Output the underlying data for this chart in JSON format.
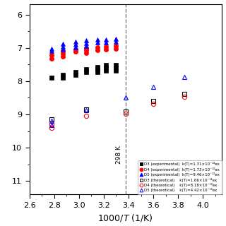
{
  "xlim": [
    2.6,
    4.15
  ],
  "ylim": [
    -11.4,
    -5.7
  ],
  "dashed_x": 3.38,
  "dashed_label": "298 K",
  "exp_D3": {
    "x": [
      2.78,
      2.87,
      2.87,
      2.97,
      2.97,
      3.06,
      3.06,
      3.15,
      3.15,
      3.15,
      3.22,
      3.22,
      3.22,
      3.3,
      3.3,
      3.3
    ],
    "y": [
      -7.9,
      -7.82,
      -7.9,
      -7.73,
      -7.82,
      -7.65,
      -7.72,
      -7.58,
      -7.65,
      -7.72,
      -7.52,
      -7.6,
      -7.68,
      -7.52,
      -7.6,
      -7.68
    ],
    "color": "black",
    "marker": "s",
    "ms": 4.5
  },
  "exp_D4": {
    "x": [
      2.78,
      2.78,
      2.87,
      2.87,
      2.87,
      2.97,
      2.97,
      3.06,
      3.06,
      3.06,
      3.15,
      3.15,
      3.22,
      3.22,
      3.3,
      3.3
    ],
    "y": [
      -7.22,
      -7.32,
      -7.1,
      -7.18,
      -7.26,
      -7.05,
      -7.12,
      -7.0,
      -7.08,
      -7.16,
      -6.98,
      -7.06,
      -6.96,
      -7.04,
      -6.95,
      -7.03
    ],
    "color": "red",
    "marker": "o",
    "ms": 4.5
  },
  "exp_D5": {
    "x": [
      2.78,
      2.78,
      2.87,
      2.87,
      2.87,
      2.97,
      2.97,
      2.97,
      3.06,
      3.06,
      3.06,
      3.15,
      3.15,
      3.22,
      3.22,
      3.3,
      3.3
    ],
    "y": [
      -7.02,
      -7.1,
      -6.88,
      -6.96,
      -7.04,
      -6.82,
      -6.9,
      -6.98,
      -6.78,
      -6.86,
      -6.94,
      -6.76,
      -6.84,
      -6.75,
      -6.83,
      -6.74,
      -6.82
    ],
    "color": "blue",
    "marker": "^",
    "ms": 5.0
  },
  "theo_D3": {
    "x": [
      2.78,
      3.06,
      3.38,
      3.6,
      3.85
    ],
    "y": [
      -9.15,
      -8.85,
      -8.92,
      -8.6,
      -8.38
    ],
    "color": "black",
    "marker": "s",
    "ms": 4.5
  },
  "theo_D4": {
    "x": [
      2.78,
      2.78,
      3.06,
      3.38,
      3.6,
      3.85
    ],
    "y": [
      -9.3,
      -9.4,
      -9.05,
      -8.98,
      -8.68,
      -8.48
    ],
    "color": "red",
    "marker": "o",
    "ms": 4.5
  },
  "theo_D5": {
    "x": [
      2.78,
      2.78,
      3.06,
      3.38,
      3.6,
      3.85
    ],
    "y": [
      -9.2,
      -9.32,
      -8.88,
      -8.5,
      -8.18,
      -7.88
    ],
    "color": "blue",
    "marker": "^",
    "ms": 5.0
  },
  "ytick_vals": [
    -6,
    -7,
    -8,
    -9,
    -10,
    -11
  ],
  "xtick_vals": [
    2.6,
    2.8,
    3.0,
    3.2,
    3.4,
    3.6,
    3.8,
    4.0
  ],
  "legend": [
    {
      "marker": "s",
      "fc": "black",
      "ec": "black",
      "label": "D3 (experimental)  k(T)=1.31×10⁻¹⁴ex"
    },
    {
      "marker": "o",
      "fc": "red",
      "ec": "red",
      "label": "D4 (experimental)  k(T)=1.73×10⁻¹²ex"
    },
    {
      "marker": "^",
      "fc": "blue",
      "ec": "blue",
      "label": "D5 (experimental)  k(T)=9.46×10⁻¹²ex"
    },
    {
      "marker": "s",
      "fc": "none",
      "ec": "black",
      "label": "D3 (theoretical)    k(T)=1.66×10⁻¹⁴ex"
    },
    {
      "marker": "o",
      "fc": "none",
      "ec": "red",
      "label": "D4 (theoretical)    k(T)=8.18×10⁻¹³ex"
    },
    {
      "marker": "^",
      "fc": "none",
      "ec": "blue",
      "label": "D5 (theoretical)    k(T)=4.42×10⁻¹³ex"
    }
  ]
}
